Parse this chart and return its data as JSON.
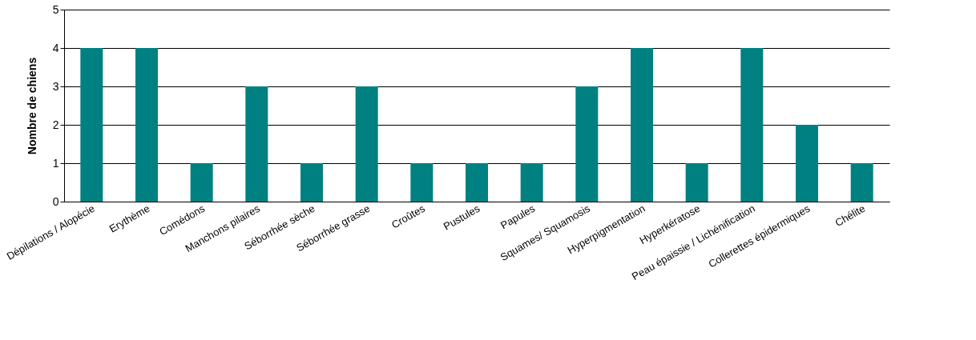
{
  "chart_data": {
    "type": "bar",
    "ylabel": "Nombre de chiens",
    "categories": [
      "Dépilations / Alopécie",
      "Erythème",
      "Comédons",
      "Manchons pilaires",
      "Séborrhée sèche",
      "Séborrhée grasse",
      "Croûtes",
      "Pustules",
      "Papules",
      "Squames/ Squamosis",
      "Hyperpigmentation",
      "Hyperkératose",
      "Peau épaissie / Lichénification",
      "Collerettes épidermiques",
      "Chélite"
    ],
    "values": [
      4,
      4,
      1,
      3,
      1,
      3,
      1,
      1,
      1,
      3,
      4,
      1,
      4,
      2,
      1
    ],
    "color": "#008080",
    "ylim": [
      0,
      5
    ],
    "yticks": [
      0,
      1,
      2,
      3,
      4,
      5
    ],
    "grid": "y"
  }
}
